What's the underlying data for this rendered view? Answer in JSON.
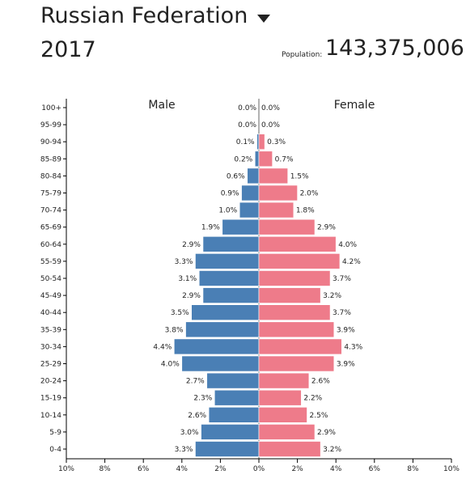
{
  "header": {
    "country": "Russian Federation",
    "year": "2017",
    "population_label": "Population:",
    "population_value": "143,375,006"
  },
  "colors": {
    "male": "#4a7fb5",
    "female": "#ee7b8a"
  },
  "chart_data": {
    "type": "bar",
    "orientation": "horizontal",
    "subtype": "population-pyramid",
    "categories": [
      "100+",
      "95-99",
      "90-94",
      "85-89",
      "80-84",
      "75-79",
      "70-74",
      "65-69",
      "60-64",
      "55-59",
      "50-54",
      "45-49",
      "40-44",
      "35-39",
      "30-34",
      "25-29",
      "20-24",
      "15-19",
      "10-14",
      "5-9",
      "0-4"
    ],
    "series": [
      {
        "name": "Male",
        "values": [
          0.0,
          0.0,
          0.1,
          0.2,
          0.6,
          0.9,
          1.0,
          1.9,
          2.9,
          3.3,
          3.1,
          2.9,
          3.5,
          3.8,
          4.4,
          4.0,
          2.7,
          2.3,
          2.6,
          3.0,
          3.3
        ]
      },
      {
        "name": "Female",
        "values": [
          0.0,
          0.0,
          0.3,
          0.7,
          1.5,
          2.0,
          1.8,
          2.9,
          4.0,
          4.2,
          3.7,
          3.2,
          3.7,
          3.9,
          4.3,
          3.9,
          2.6,
          2.2,
          2.5,
          2.9,
          3.2
        ]
      }
    ],
    "value_labels": {
      "Male": [
        "0.0%",
        "0.0%",
        "0.1%",
        "0.2%",
        "0.6%",
        "0.9%",
        "1.0%",
        "1.9%",
        "2.9%",
        "3.3%",
        "3.1%",
        "2.9%",
        "3.5%",
        "3.8%",
        "4.4%",
        "4.0%",
        "2.7%",
        "2.3%",
        "2.6%",
        "3.0%",
        "3.3%"
      ],
      "Female": [
        "0.0%",
        "0.0%",
        "0.3%",
        "0.7%",
        "1.5%",
        "2.0%",
        "1.8%",
        "2.9%",
        "4.0%",
        "4.2%",
        "3.7%",
        "3.2%",
        "3.7%",
        "3.9%",
        "4.3%",
        "3.9%",
        "2.6%",
        "2.2%",
        "2.5%",
        "2.9%",
        "3.2%"
      ]
    },
    "x_ticks": [
      "10%",
      "8%",
      "6%",
      "4%",
      "2%",
      "0%",
      "2%",
      "4%",
      "6%",
      "8%",
      "10%"
    ],
    "xlim": [
      -10,
      10
    ],
    "grid": false
  }
}
